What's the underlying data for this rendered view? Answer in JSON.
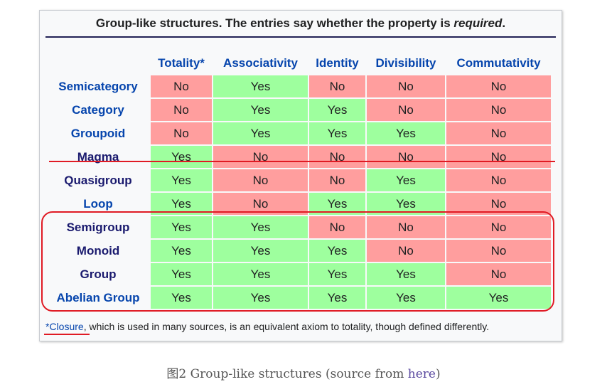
{
  "title": {
    "prefix": "Group-like structures. The entries say whether the property is ",
    "emphasis": "required",
    "suffix": "."
  },
  "columns": [
    "Totality*",
    "Associativity",
    "Identity",
    "Divisibility",
    "Commutativity"
  ],
  "rows": [
    {
      "label": "Semicategory",
      "values": [
        "No",
        "Yes",
        "No",
        "No",
        "No"
      ]
    },
    {
      "label": "Category",
      "values": [
        "No",
        "Yes",
        "Yes",
        "No",
        "No"
      ]
    },
    {
      "label": "Groupoid",
      "values": [
        "No",
        "Yes",
        "Yes",
        "Yes",
        "No"
      ]
    },
    {
      "label": "Magma",
      "values": [
        "Yes",
        "No",
        "No",
        "No",
        "No"
      ]
    },
    {
      "label": "Quasigroup",
      "values": [
        "Yes",
        "No",
        "No",
        "Yes",
        "No"
      ]
    },
    {
      "label": "Loop",
      "values": [
        "Yes",
        "No",
        "Yes",
        "Yes",
        "No"
      ]
    },
    {
      "label": "Semigroup",
      "values": [
        "Yes",
        "Yes",
        "No",
        "No",
        "No"
      ]
    },
    {
      "label": "Monoid",
      "values": [
        "Yes",
        "Yes",
        "Yes",
        "No",
        "No"
      ]
    },
    {
      "label": "Group",
      "values": [
        "Yes",
        "Yes",
        "Yes",
        "Yes",
        "No"
      ]
    },
    {
      "label": "Abelian Group",
      "values": [
        "Yes",
        "Yes",
        "Yes",
        "Yes",
        "Yes"
      ]
    }
  ],
  "footnote": {
    "link": "*Closure",
    "text": ", which is used in many sources, is an equivalent axiom to totality, though defined differently."
  },
  "caption": {
    "prefix": "图2 Group-like structures (source from ",
    "link": "here",
    "suffix": ")"
  },
  "colors": {
    "yes": "#9eff9e",
    "no": "#ff9e9e",
    "annotation": "#e01b24",
    "link": "#0645ad"
  }
}
